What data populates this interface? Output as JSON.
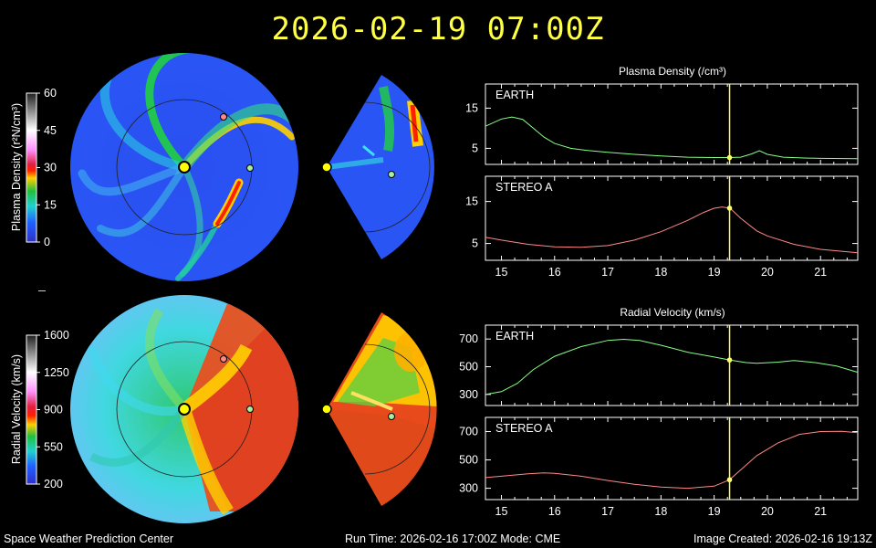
{
  "header": {
    "timestamp": "2026-02-19  07:00Z"
  },
  "footer": {
    "center_name": "Space Weather Prediction Center",
    "run_info": "Run Time: 2026-02-16 17:00Z  Mode: CME",
    "image_created": "Image Created: 2026-02-16 19:13Z"
  },
  "colors": {
    "earth_line": "#88ff88",
    "stereo_line": "#ff8888",
    "current_time_marker": "#ffff66",
    "sun": "#ffff00",
    "earth_marker": "#a8f0a0",
    "stereo_marker": "#ff8888"
  },
  "colorbars": {
    "density": {
      "label": "Plasma Density (r²N/cm³)",
      "ticks": [
        "60",
        "45",
        "30",
        "15",
        "0"
      ]
    },
    "velocity": {
      "label": "Radial Velocity (km/s)",
      "ticks": [
        "1600",
        "1250",
        "900",
        "550",
        "200"
      ]
    }
  },
  "chart_data": [
    {
      "type": "line",
      "title": "Plasma Density (/cm³)",
      "panel": "EARTH",
      "xlim": [
        14.7,
        21.7
      ],
      "ylim": [
        1,
        21
      ],
      "xticks": [
        "15",
        "16",
        "17",
        "18",
        "19",
        "20",
        "21"
      ],
      "yticks": [
        "5",
        "15"
      ],
      "current_time": 19.29,
      "x": [
        14.7,
        15.0,
        15.2,
        15.4,
        15.6,
        15.8,
        16.0,
        16.3,
        16.6,
        17.0,
        17.5,
        18.0,
        18.5,
        19.0,
        19.3,
        19.5,
        19.7,
        19.85,
        20.0,
        20.3,
        20.7,
        21.0,
        21.7
      ],
      "series": [
        {
          "values": [
            10.5,
            12.3,
            12.8,
            12.2,
            10.0,
            7.8,
            6.2,
            5.0,
            4.5,
            4.0,
            3.5,
            3.1,
            2.8,
            2.7,
            2.7,
            2.8,
            3.6,
            4.4,
            3.5,
            2.8,
            2.6,
            2.5,
            2.4
          ]
        }
      ]
    },
    {
      "type": "line",
      "panel": "STEREO A",
      "xlim": [
        14.7,
        21.7
      ],
      "ylim": [
        1,
        21
      ],
      "xticks": [
        "15",
        "16",
        "17",
        "18",
        "19",
        "20",
        "21"
      ],
      "yticks": [
        "5",
        "15"
      ],
      "current_time": 19.29,
      "x": [
        14.7,
        15.0,
        15.5,
        16.0,
        16.5,
        17.0,
        17.5,
        18.0,
        18.5,
        18.8,
        19.0,
        19.15,
        19.3,
        19.5,
        19.8,
        20.0,
        20.5,
        21.0,
        21.7
      ],
      "series": [
        {
          "values": [
            6.5,
            5.8,
            4.8,
            4.2,
            4.1,
            4.5,
            5.8,
            7.8,
            10.5,
            12.4,
            13.4,
            13.7,
            13.4,
            11.0,
            8.0,
            6.8,
            4.8,
            3.6,
            2.8
          ]
        }
      ]
    },
    {
      "type": "line",
      "title": "Radial Velocity (km/s)",
      "panel": "EARTH",
      "xlim": [
        14.7,
        21.7
      ],
      "ylim": [
        220,
        800
      ],
      "xticks": [
        "15",
        "16",
        "17",
        "18",
        "19",
        "20",
        "21"
      ],
      "yticks": [
        "300",
        "500",
        "700"
      ],
      "current_time": 19.29,
      "x": [
        14.7,
        15.0,
        15.3,
        15.6,
        16.0,
        16.5,
        17.0,
        17.3,
        17.6,
        18.0,
        18.5,
        19.0,
        19.3,
        19.6,
        19.8,
        20.2,
        20.5,
        20.9,
        21.3,
        21.7
      ],
      "series": [
        {
          "values": [
            300,
            320,
            380,
            480,
            575,
            645,
            690,
            698,
            690,
            655,
            605,
            570,
            548,
            530,
            525,
            533,
            545,
            530,
            505,
            460
          ]
        }
      ]
    },
    {
      "type": "line",
      "panel": "STEREO A",
      "xlim": [
        14.7,
        21.7
      ],
      "ylim": [
        220,
        800
      ],
      "xticks": [
        "15",
        "16",
        "17",
        "18",
        "19",
        "20",
        "21"
      ],
      "yticks": [
        "300",
        "500",
        "700"
      ],
      "current_time": 19.29,
      "x": [
        14.7,
        15.0,
        15.5,
        15.8,
        16.0,
        16.5,
        17.0,
        17.5,
        18.0,
        18.5,
        19.0,
        19.29,
        19.5,
        19.8,
        20.2,
        20.6,
        21.0,
        21.4,
        21.7
      ],
      "series": [
        {
          "values": [
            375,
            385,
            402,
            408,
            405,
            385,
            355,
            328,
            308,
            300,
            315,
            360,
            430,
            530,
            620,
            680,
            700,
            702,
            692
          ]
        }
      ]
    }
  ]
}
